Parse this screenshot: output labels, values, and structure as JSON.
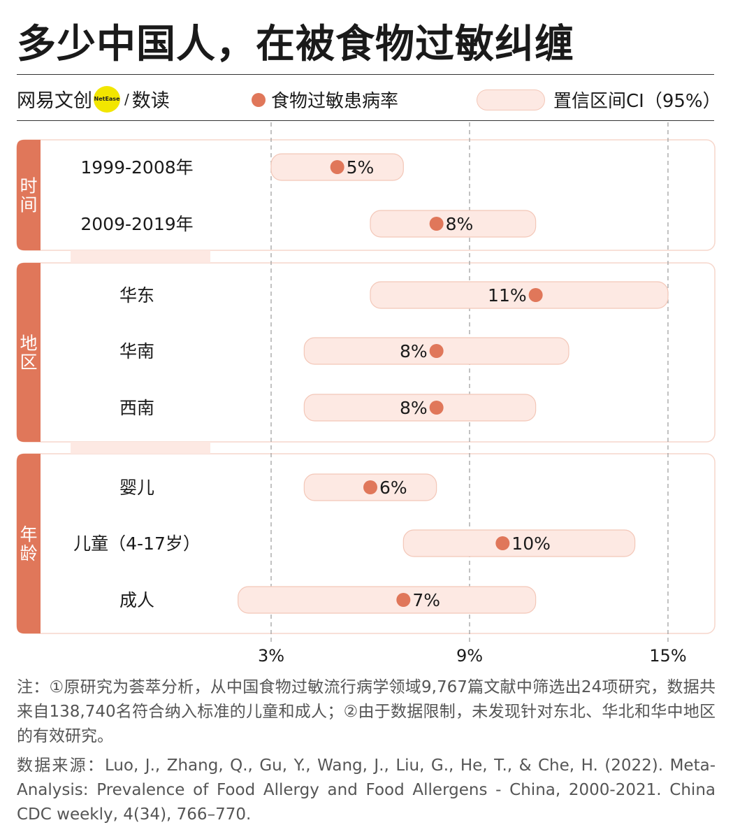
{
  "title": "多少中国人，在被食物过敏纠缠",
  "brand": {
    "name": "网易文创",
    "logo_text": "NetEase",
    "slash": "/",
    "section": "数读"
  },
  "legend": {
    "point_label": "食物过敏患病率",
    "ci_label": "置信区间CI（95%）"
  },
  "colors": {
    "accent": "#e0775a",
    "ci_fill": "#fde9e3",
    "ci_stroke": "#f3c7b8",
    "group_tab": "#e0775a",
    "group_border": "#f6d6cb"
  },
  "chart_data": {
    "type": "forest",
    "xlim": [
      0,
      15
    ],
    "xticks": [
      3,
      9,
      15
    ],
    "xtick_labels": [
      "3%",
      "9%",
      "15%"
    ],
    "grid": "vertical dashed at ticks",
    "groups": [
      {
        "label": "时间",
        "rows": [
          {
            "label": "1999-2008年",
            "value": 5,
            "value_label": "5%",
            "ci": [
              3,
              7
            ],
            "label_side": "right"
          },
          {
            "label": "2009-2019年",
            "value": 8,
            "value_label": "8%",
            "ci": [
              6,
              11
            ],
            "label_side": "right"
          }
        ]
      },
      {
        "label": "地区",
        "rows": [
          {
            "label": "华东",
            "value": 11,
            "value_label": "11%",
            "ci": [
              6,
              15
            ],
            "label_side": "left"
          },
          {
            "label": "华南",
            "value": 8,
            "value_label": "8%",
            "ci": [
              4,
              12
            ],
            "label_side": "left"
          },
          {
            "label": "西南",
            "value": 8,
            "value_label": "8%",
            "ci": [
              4,
              11
            ],
            "label_side": "left"
          }
        ]
      },
      {
        "label": "年龄",
        "rows": [
          {
            "label": "婴儿",
            "value": 6,
            "value_label": "6%",
            "ci": [
              4,
              8
            ],
            "label_side": "right"
          },
          {
            "label": "儿童（4-17岁）",
            "value": 10,
            "value_label": "10%",
            "ci": [
              7,
              14
            ],
            "label_side": "right"
          },
          {
            "label": "成人",
            "value": 7,
            "value_label": "7%",
            "ci": [
              2,
              11
            ],
            "label_side": "right"
          }
        ]
      }
    ]
  },
  "notes": "注：①原研究为荟萃分析，从中国食物过敏流行病学领域9,767篇文献中筛选出24项研究，数据共来自138,740名符合纳入标准的儿童和成人；②由于数据限制，未发现针对东北、华北和华中地区的有效研究。",
  "source": "数据来源：Luo, J., Zhang, Q., Gu, Y., Wang, J., Liu, G., He, T., & Che, H. (2022). Meta-Analysis: Prevalence of Food Allergy and Food Allergens - China, 2000-2021. China CDC weekly, 4(34), 766–770."
}
